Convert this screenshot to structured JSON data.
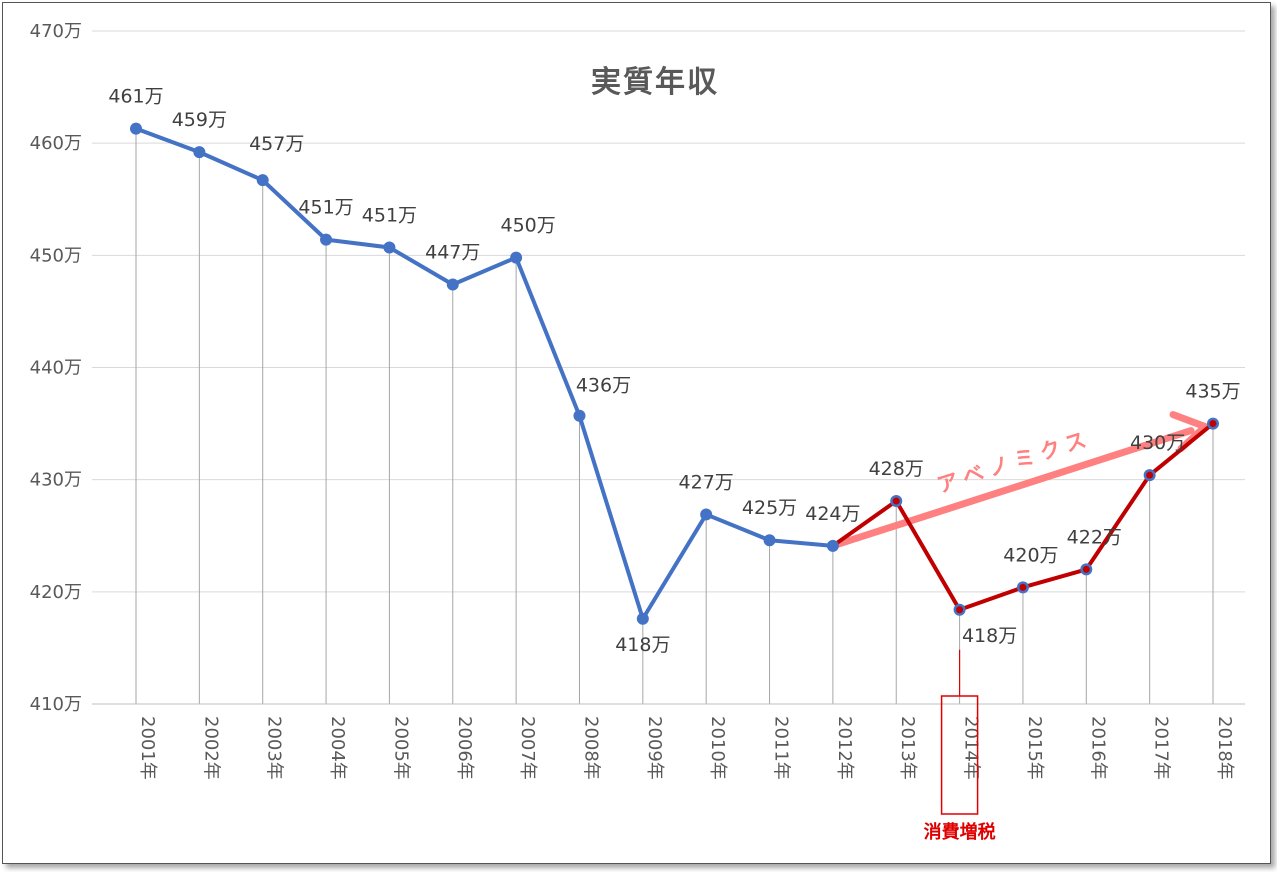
{
  "chart_data": {
    "type": "line",
    "title": "実質年収",
    "categories": [
      "2001年",
      "2002年",
      "2003年",
      "2004年",
      "2005年",
      "2006年",
      "2007年",
      "2008年",
      "2009年",
      "2010年",
      "2011年",
      "2012年",
      "2013年",
      "2014年",
      "2015年",
      "2016年",
      "2017年",
      "2018年"
    ],
    "values": [
      461.3,
      459.2,
      456.7,
      451.4,
      450.7,
      447.4,
      449.8,
      435.7,
      417.6,
      426.9,
      424.6,
      424.1,
      428.1,
      418.4,
      420.4,
      422.0,
      430.4,
      435.0
    ],
    "data_labels": [
      "461万",
      "459万",
      "457万",
      "451万",
      "451万",
      "447万",
      "450万",
      "436万",
      "418万",
      "427万",
      "425万",
      "424万",
      "428万",
      "418万",
      "420万",
      "422万",
      "430万",
      "435万"
    ],
    "ylim": [
      410,
      470
    ],
    "y_ticks": [
      "410万",
      "420万",
      "430万",
      "440万",
      "450万",
      "460万",
      "470万"
    ],
    "gridlines": true,
    "colors": {
      "before": "#4472c4",
      "after": "#c00000",
      "arrow": "#ff8080",
      "note": "#e00000"
    },
    "annotations": {
      "arrow_text": "アベノミクス",
      "tax_note": "消費増税"
    }
  }
}
